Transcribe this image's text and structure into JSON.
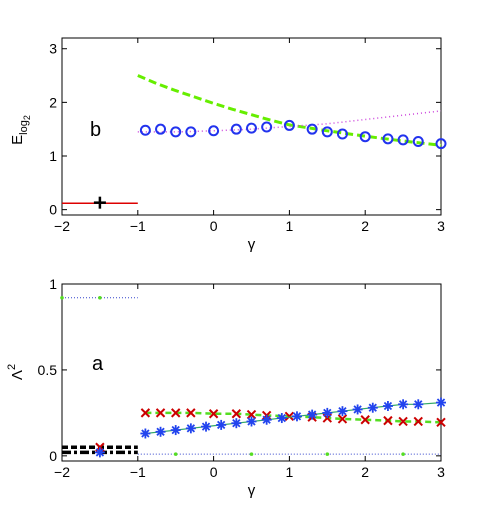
{
  "chart_data": [
    {
      "type": "scatter",
      "panel_label": "b",
      "xlabel": "γ",
      "ylabel_main": "E",
      "ylabel_sub1": "log",
      "ylabel_sub2": "2",
      "xlim": [
        -2,
        3
      ],
      "ylim": [
        -0.1,
        3.2
      ],
      "xticks": [
        -2,
        -1,
        0,
        1,
        2,
        3
      ],
      "xticklabels": [
        "−2",
        "−1",
        "0",
        "1",
        "2",
        "3"
      ],
      "yticks": [
        0,
        1,
        2,
        3
      ],
      "yticklabels": [
        "0",
        "1",
        "2",
        "3"
      ],
      "grid": false,
      "series": [
        {
          "style": "solid",
          "color": "#dd0000",
          "x": [
            -2,
            -1
          ],
          "y": [
            0.12,
            0.12
          ]
        },
        {
          "style": "plus-marker",
          "color": "#000000",
          "x": [
            -1.5
          ],
          "y": [
            0.13
          ]
        },
        {
          "style": "dashed",
          "color": "#66ee00",
          "x": [
            -1,
            -0.75,
            -0.5,
            -0.25,
            0,
            0.25,
            0.5,
            0.75,
            1,
            1.5,
            2,
            2.5,
            3
          ],
          "y": [
            2.5,
            2.35,
            2.22,
            2.1,
            1.98,
            1.87,
            1.77,
            1.67,
            1.58,
            1.47,
            1.37,
            1.28,
            1.2
          ]
        },
        {
          "style": "dotted",
          "color": "#cc44dd",
          "x": [
            -1,
            -0.5,
            0,
            0.5,
            1,
            1.5,
            2,
            2.5,
            3
          ],
          "y": [
            1.45,
            1.45,
            1.47,
            1.5,
            1.55,
            1.6,
            1.68,
            1.76,
            1.84
          ]
        },
        {
          "style": "circle-marker",
          "color": "#2233ee",
          "x": [
            -0.9,
            -0.7,
            -0.5,
            -0.3,
            0,
            0.3,
            0.5,
            0.7,
            1,
            1.3,
            1.5,
            1.7,
            2,
            2.3,
            2.5,
            2.7,
            3
          ],
          "y": [
            1.48,
            1.5,
            1.45,
            1.45,
            1.47,
            1.5,
            1.52,
            1.54,
            1.57,
            1.5,
            1.45,
            1.41,
            1.36,
            1.32,
            1.3,
            1.27,
            1.23
          ]
        }
      ]
    },
    {
      "type": "scatter",
      "panel_label": "a",
      "xlabel": "γ",
      "ylabel_main": "Λ",
      "ylabel_sup": "2",
      "xlim": [
        -2,
        3
      ],
      "ylim": [
        -0.03,
        1.0
      ],
      "xticks": [
        -2,
        -1,
        0,
        1,
        2,
        3
      ],
      "xticklabels": [
        "−2",
        "−1",
        "0",
        "1",
        "2",
        "3"
      ],
      "yticks": [
        0,
        0.5,
        1
      ],
      "yticklabels": [
        "0",
        "0.5",
        "1"
      ],
      "grid": false,
      "series": [
        {
          "style": "dotted-dot",
          "color": "#3344cc",
          "x": [
            -2,
            -1
          ],
          "y": [
            0.92,
            0.92
          ]
        },
        {
          "style": "black-dash",
          "color": "#000000",
          "x": [
            -2,
            -1
          ],
          "y": [
            0.05,
            0.05
          ]
        },
        {
          "style": "black-dashdot",
          "color": "#000000",
          "x": [
            -2,
            -1
          ],
          "y": [
            0.02,
            0.02
          ]
        },
        {
          "style": "x-marker",
          "color": "#cc0000",
          "x": [
            -1.5
          ],
          "y": [
            0.05
          ]
        },
        {
          "style": "star-marker",
          "color": "#2244ee",
          "x": [
            -1.5
          ],
          "y": [
            0.02
          ]
        },
        {
          "style": "dotted-dot",
          "color": "#3344cc",
          "x": [
            -1,
            -0.5,
            0,
            0.5,
            1,
            1.5,
            2,
            2.5,
            3
          ],
          "y": [
            0.01,
            0.01,
            0.01,
            0.01,
            0.01,
            0.01,
            0.01,
            0.01,
            0.01
          ]
        },
        {
          "style": "x-marker",
          "color": "#cc0000",
          "x": [
            -0.9,
            -0.7,
            -0.5,
            -0.3,
            0,
            0.3,
            0.5,
            0.7,
            1,
            1.3,
            1.5,
            1.7,
            2,
            2.3,
            2.5,
            2.7,
            3
          ],
          "y": [
            0.25,
            0.25,
            0.25,
            0.25,
            0.245,
            0.245,
            0.24,
            0.235,
            0.23,
            0.225,
            0.22,
            0.215,
            0.21,
            0.205,
            0.2,
            0.2,
            0.195
          ]
        },
        {
          "style": "star-marker",
          "color": "#2244ee",
          "x": [
            -0.9,
            -0.7,
            -0.5,
            -0.3,
            -0.1,
            0.1,
            0.3,
            0.5,
            0.7,
            0.9,
            1.1,
            1.3,
            1.5,
            1.7,
            1.9,
            2.1,
            2.3,
            2.5,
            2.7,
            3
          ],
          "y": [
            0.13,
            0.14,
            0.15,
            0.16,
            0.17,
            0.18,
            0.19,
            0.2,
            0.21,
            0.22,
            0.23,
            0.24,
            0.25,
            0.26,
            0.27,
            0.28,
            0.29,
            0.3,
            0.3,
            0.31
          ]
        }
      ]
    }
  ]
}
